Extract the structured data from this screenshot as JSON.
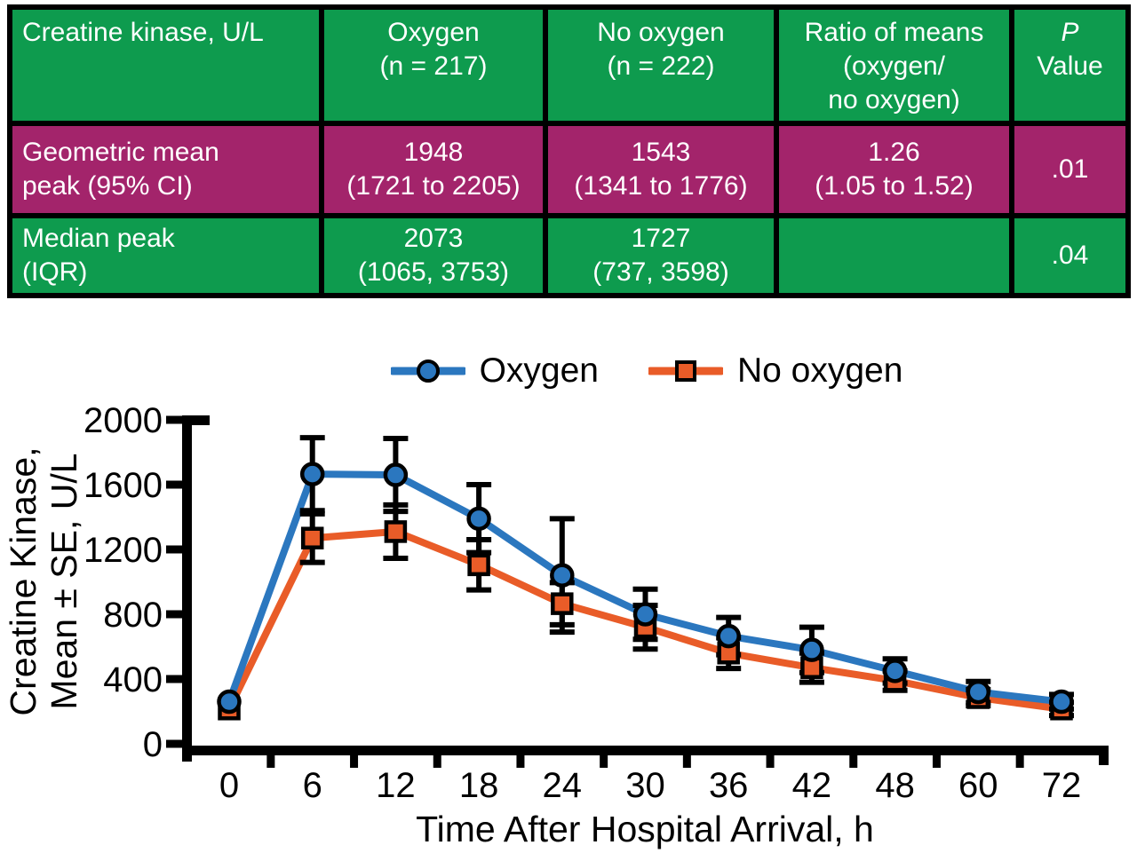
{
  "colors": {
    "table_green": "#0e9b4e",
    "table_magenta": "#a3246b",
    "table_border": "#000000",
    "table_text": "#ffffff",
    "oxygen": "#2b77bf",
    "no_oxygen": "#e95c28",
    "axis": "#000000"
  },
  "table": {
    "header": {
      "col1": "Creatine kinase, U/L",
      "col2": "Oxygen\n(n = 217)",
      "col3": "No oxygen\n(n = 222)",
      "col4": "Ratio of means\n(oxygen/\nno oxygen)",
      "col5_line1": "P",
      "col5_line2": "Value"
    },
    "rows": [
      {
        "label": "Geometric mean\npeak (95% CI)",
        "oxygen": "1948\n(1721 to 2205)",
        "no_oxygen": "1543\n(1341 to 1776)",
        "ratio": "1.26\n(1.05 to 1.52)",
        "p_value": ".01"
      },
      {
        "label": "Median peak\n(IQR)",
        "oxygen": "2073\n(1065, 3753)",
        "no_oxygen": "1727\n(737, 3598)",
        "ratio": "",
        "p_value": ".04"
      }
    ]
  },
  "chart_data": {
    "type": "line",
    "x": [
      0,
      6,
      12,
      18,
      24,
      30,
      36,
      42,
      48,
      60,
      72
    ],
    "series": [
      {
        "name": "Oxygen",
        "marker": "circle",
        "color": "#2b77bf",
        "values": [
          260,
          1665,
          1660,
          1390,
          1040,
          800,
          665,
          580,
          450,
          320,
          260
        ],
        "se": [
          0,
          225,
          225,
          210,
          350,
          155,
          115,
          140,
          75,
          65,
          45
        ]
      },
      {
        "name": "No oxygen",
        "marker": "square",
        "color": "#e95c28",
        "values": [
          215,
          1270,
          1310,
          1105,
          865,
          720,
          560,
          470,
          390,
          285,
          215
        ],
        "se": [
          0,
          150,
          165,
          155,
          130,
          135,
          95,
          90,
          60,
          50,
          40
        ]
      }
    ],
    "xlabel": "Time After Hospital Arrival, h",
    "ylabel": "Creatine Kinase,\nMean ± SE, U/L",
    "ylim": [
      0,
      2000
    ],
    "yticks": [
      0,
      400,
      800,
      1200,
      1600,
      2000
    ],
    "grid": false,
    "legend_position": "top-center"
  }
}
